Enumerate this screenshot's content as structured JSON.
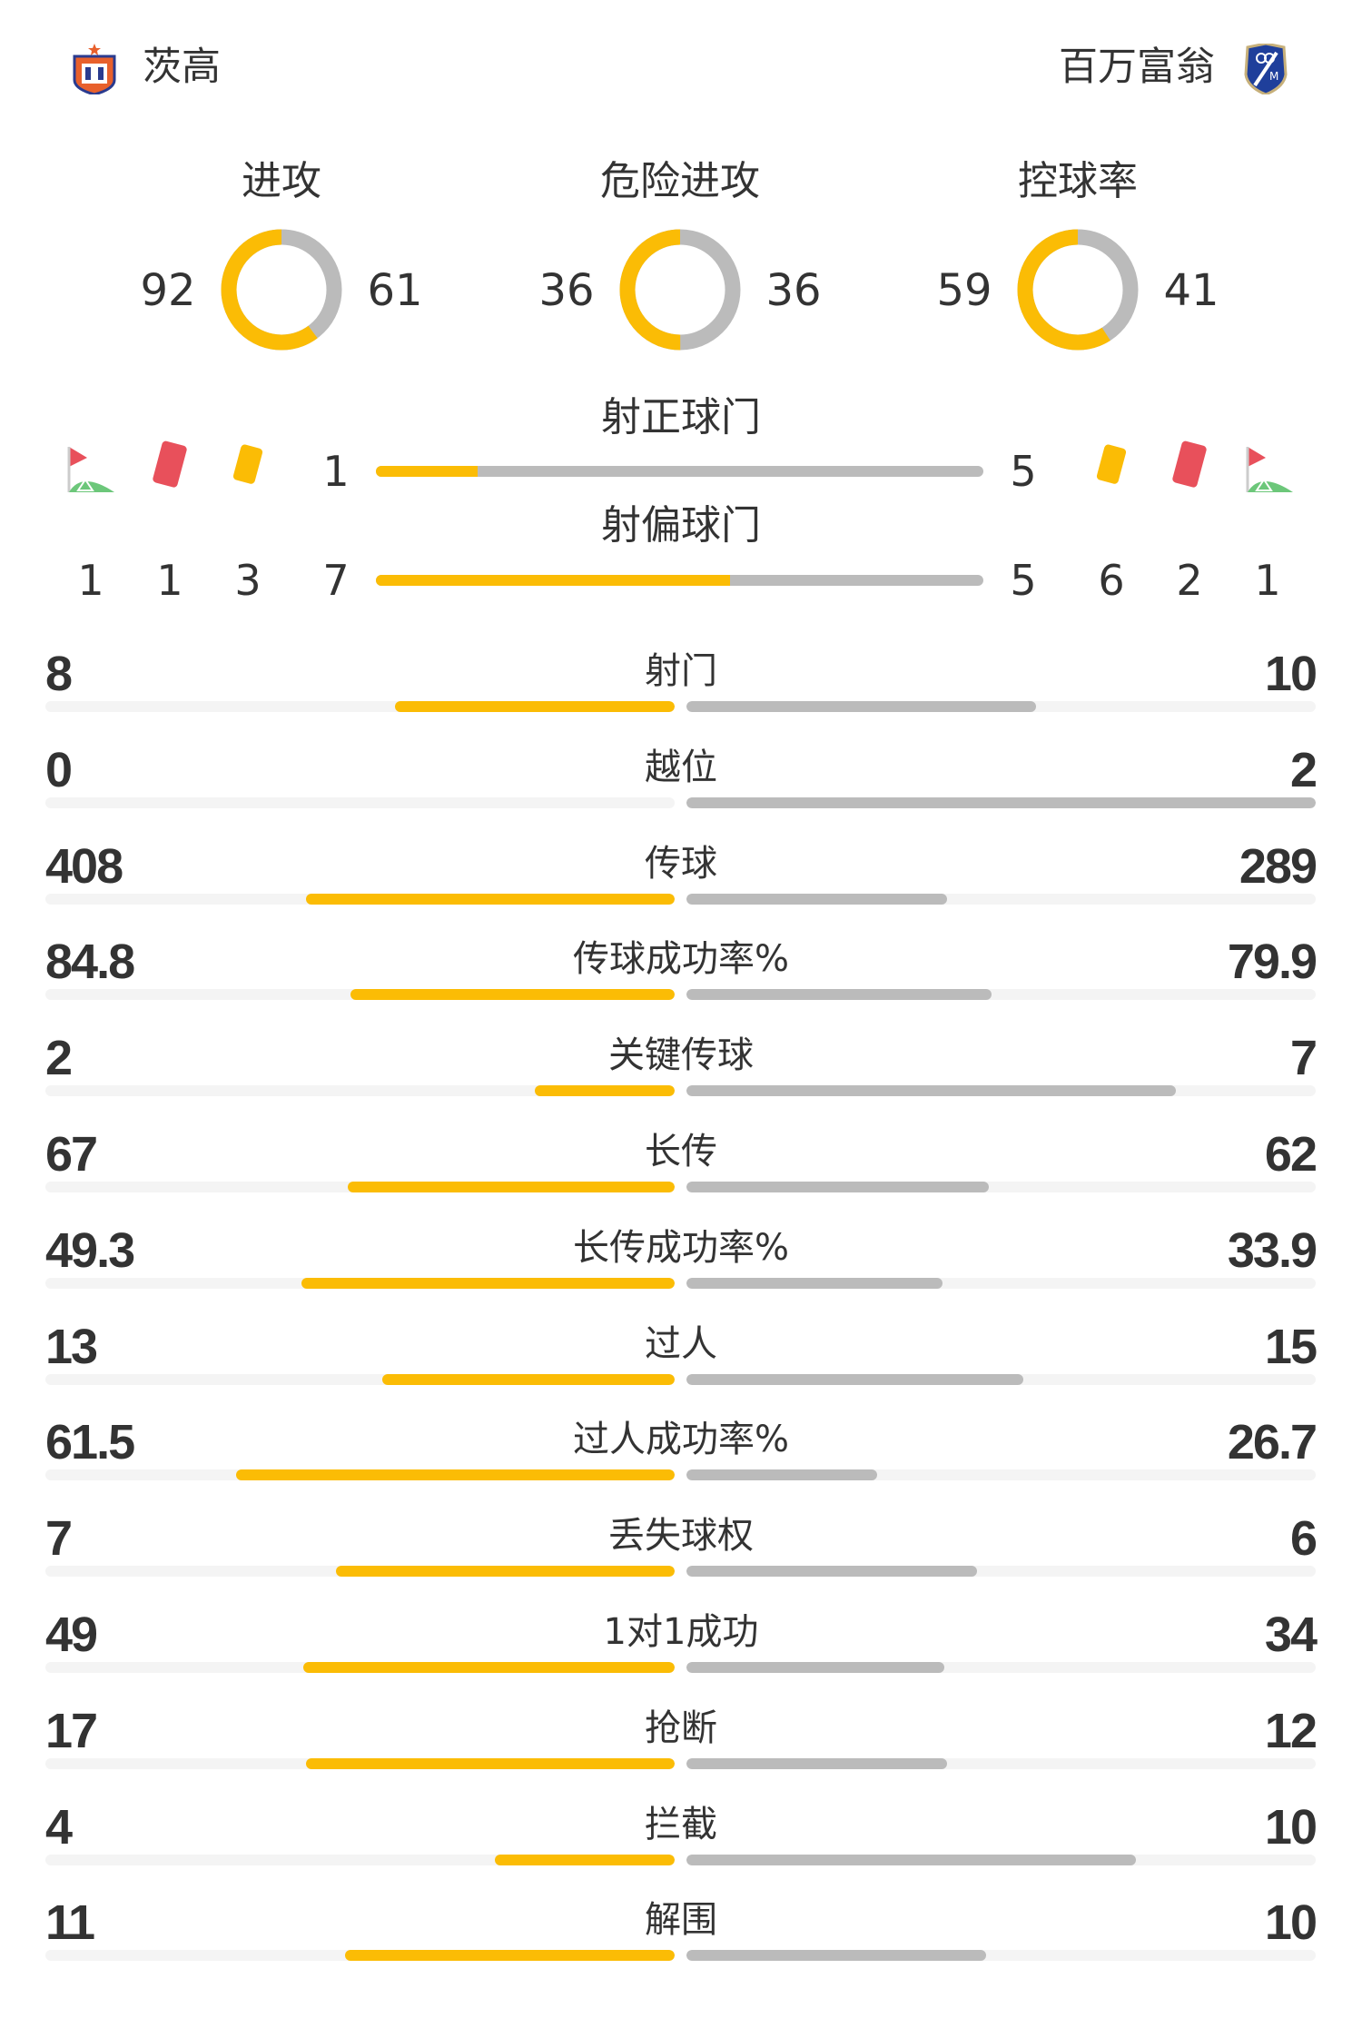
{
  "home": {
    "name": "茨高",
    "logo": "boyaca-chico-shield-logo"
  },
  "away": {
    "name": "百万富翁",
    "logo": "millonarios-shield-logo"
  },
  "colors": {
    "home": "#fbbc05",
    "away": "#bbbbbb",
    "track": "#f4f4f4",
    "red_card": "#e8505b",
    "yellow_card": "#fbbc05",
    "corner_flag": "#e8505b",
    "corner_ground": "#6cc77a"
  },
  "rings": [
    {
      "label": "进攻",
      "home": 92,
      "away": 61
    },
    {
      "label": "危险进攻",
      "home": 36,
      "away": 36
    },
    {
      "label": "控球率",
      "home": 59,
      "away": 41
    }
  ],
  "on_target": {
    "label": "射正球门",
    "home": 1,
    "away": 5
  },
  "off_target": {
    "label": "射偏球门",
    "home": 7,
    "away": 5
  },
  "home_counts": {
    "corners": 1,
    "red_cards": 1,
    "yellow_cards": 3
  },
  "away_counts": {
    "yellow_cards": 6,
    "red_cards": 2,
    "corners": 1
  },
  "icons": {
    "corner": "corner-flag-icon",
    "red": "red-card-icon",
    "yellow": "yellow-card-icon"
  },
  "stats": [
    {
      "label": "射门",
      "home": "8",
      "away": "10"
    },
    {
      "label": "越位",
      "home": "0",
      "away": "2"
    },
    {
      "label": "传球",
      "home": "408",
      "away": "289"
    },
    {
      "label": "传球成功率%",
      "home": "84.8",
      "away": "79.9"
    },
    {
      "label": "关键传球",
      "home": "2",
      "away": "7"
    },
    {
      "label": "长传",
      "home": "67",
      "away": "62"
    },
    {
      "label": "长传成功率%",
      "home": "49.3",
      "away": "33.9"
    },
    {
      "label": "过人",
      "home": "13",
      "away": "15"
    },
    {
      "label": "过人成功率%",
      "home": "61.5",
      "away": "26.7"
    },
    {
      "label": "丢失球权",
      "home": "7",
      "away": "6"
    },
    {
      "label": "1对1成功",
      "home": "49",
      "away": "34"
    },
    {
      "label": "抢断",
      "home": "17",
      "away": "12"
    },
    {
      "label": "拦截",
      "home": "4",
      "away": "10"
    },
    {
      "label": "解围",
      "home": "11",
      "away": "10"
    }
  ]
}
